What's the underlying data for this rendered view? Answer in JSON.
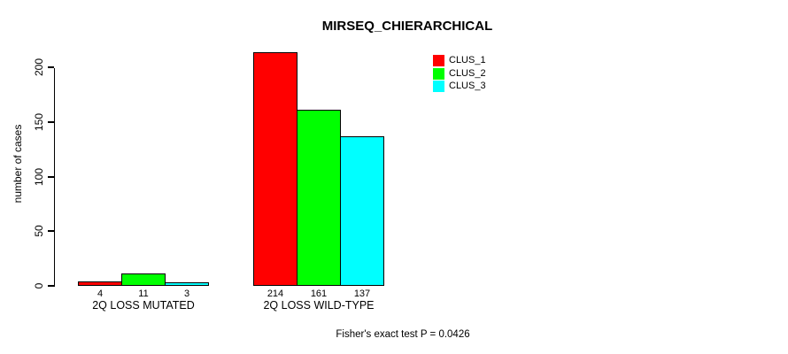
{
  "chart_data": {
    "type": "bar",
    "title": "MIRSEQ_CHIERARCHICAL",
    "ylabel": "number of cases",
    "xlabel": "",
    "categories": [
      "2Q LOSS MUTATED",
      "2Q LOSS WILD-TYPE"
    ],
    "series": [
      {
        "name": "CLUS_1",
        "color": "#ff0000",
        "values": [
          4,
          214
        ]
      },
      {
        "name": "CLUS_2",
        "color": "#00ff00",
        "values": [
          11,
          161
        ]
      },
      {
        "name": "CLUS_3",
        "color": "#00ffff",
        "values": [
          3,
          137
        ]
      }
    ],
    "yticks": [
      0,
      50,
      100,
      150,
      200
    ],
    "ylim": [
      0,
      215
    ],
    "grid": false,
    "bar_value_labels_shown": true,
    "legend_position": "top-right-inset"
  },
  "annotation": {
    "fisher_text": "Fisher's exact test P = 0.0426"
  }
}
